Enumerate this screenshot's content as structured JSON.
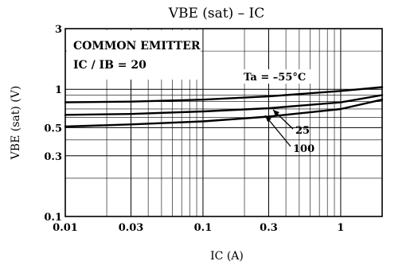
{
  "chart_data": {
    "type": "line",
    "title": "VBE (sat) – IC",
    "xlabel": "IC (A)",
    "ylabel": "VBE (sat) (V)",
    "x_scale": "log",
    "y_scale": "log",
    "xlim": [
      0.01,
      2
    ],
    "ylim": [
      0.1,
      3
    ],
    "x_ticks": [
      0.01,
      0.03,
      0.1,
      0.3,
      1
    ],
    "x_tick_labels": [
      "0.01",
      "0.03",
      "0.1",
      "0.3",
      "1"
    ],
    "y_ticks": [
      0.1,
      0.3,
      0.5,
      1,
      3
    ],
    "y_tick_labels": [
      "0.1",
      "0.3",
      "0.5",
      "1",
      "3"
    ],
    "grid": true,
    "legend_box": {
      "line1": "COMMON EMITTER",
      "line2": "IC / IB = 20",
      "placement": "top-left"
    },
    "series": [
      {
        "name": "Ta = –55°C",
        "x": [
          0.01,
          0.03,
          0.1,
          0.3,
          1,
          2
        ],
        "y": [
          0.79,
          0.8,
          0.83,
          0.88,
          0.97,
          1.04
        ]
      },
      {
        "name": "25",
        "x": [
          0.01,
          0.03,
          0.1,
          0.3,
          1,
          2
        ],
        "y": [
          0.63,
          0.64,
          0.67,
          0.71,
          0.79,
          0.9
        ]
      },
      {
        "name": "100",
        "x": [
          0.01,
          0.03,
          0.1,
          0.3,
          1,
          2
        ],
        "y": [
          0.51,
          0.53,
          0.56,
          0.61,
          0.7,
          0.83
        ]
      }
    ]
  }
}
